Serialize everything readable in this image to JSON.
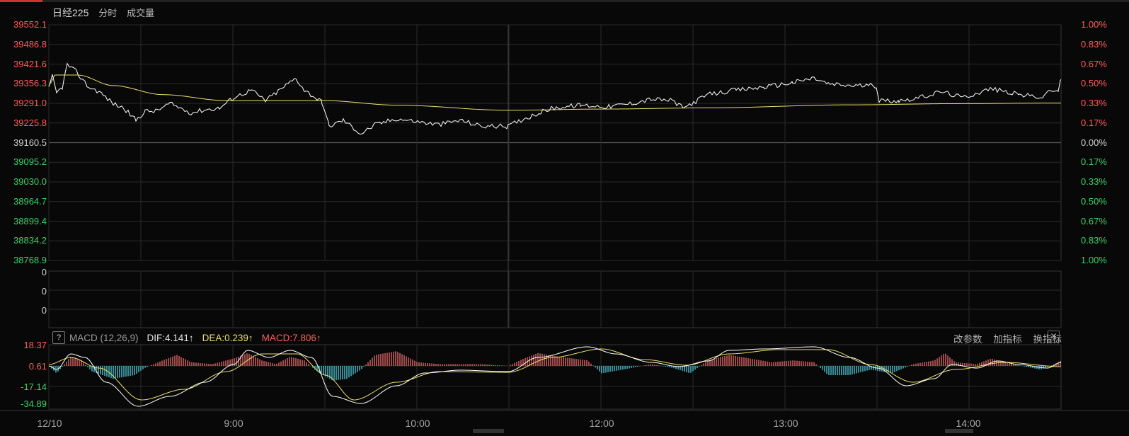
{
  "header": {
    "title": "日经225",
    "mode": "分时",
    "indicator": "成交量"
  },
  "price_axis": {
    "labels": [
      "39552.1",
      "39486.8",
      "39421.6",
      "39356.3",
      "39291.0",
      "39225.8",
      "39160.5",
      "39095.2",
      "39030.0",
      "38964.7",
      "38899.4",
      "38834.2",
      "38768.9"
    ],
    "pct_labels": [
      "1.00%",
      "0.83%",
      "0.67%",
      "0.50%",
      "0.33%",
      "0.17%",
      "0.00%",
      "0.17%",
      "0.33%",
      "0.50%",
      "0.67%",
      "0.83%",
      "1.00%"
    ],
    "up_color": "#ff5b5b",
    "down_color": "#39d06a"
  },
  "volume_axis": {
    "labels": [
      "0",
      "0",
      "0"
    ]
  },
  "macd": {
    "name": "MACD (12,26,9)",
    "help_icon": "?",
    "dif_label": "DIF:4.141↑",
    "dea_label": "DEA:0.239↑",
    "macd_label": "MACD:7.806↑",
    "axis_labels": [
      "18.37",
      "0.61",
      "-17.14",
      "-34.89"
    ],
    "buttons": {
      "change_params": "改参数",
      "add_indicator": "加指标",
      "switch_indicator": "换指标",
      "close": "✕"
    }
  },
  "time_axis": {
    "labels": [
      "12/10",
      "9:00",
      "10:00",
      "12:00",
      "13:00",
      "14:00"
    ]
  },
  "chart_data": {
    "type": "line",
    "title": "",
    "series": [
      {
        "name": "",
        "color": "#ffffff",
        "x": [
          "8:00",
          "8:10",
          "8:30",
          "8:45",
          "9:00",
          "9:20",
          "9:30",
          "9:50",
          "10:00",
          "10:20",
          "10:30",
          "10:45",
          "11:00",
          "11:30",
          "12:00",
          "12:20",
          "12:40",
          "13:00",
          "13:10",
          "13:30",
          "13:40",
          "14:00",
          "14:20",
          "14:30"
        ],
        "values": [
          39340,
          39400,
          39250,
          39290,
          39330,
          39380,
          39215,
          39190,
          39240,
          39210,
          39215,
          39260,
          39300,
          39275,
          39330,
          39350,
          39370,
          39390,
          39370,
          39310,
          39320,
          39340,
          39330,
          39370
        ]
      },
      {
        "name": "",
        "color": "#e8e06a",
        "x": [
          "8:00",
          "8:30",
          "9:00",
          "9:30",
          "10:00",
          "10:30",
          "11:00",
          "12:00",
          "13:00",
          "14:00",
          "14:30"
        ],
        "values": [
          39390,
          39325,
          39300,
          39300,
          39285,
          39275,
          39270,
          39275,
          39285,
          39291,
          39293
        ]
      }
    ],
    "ylim": [
      38768.9,
      39552.1
    ],
    "grid": true
  },
  "colors": {
    "background": "#080808",
    "grid": "#2a2a2a",
    "price_line": "#ffffff",
    "avg_line": "#e8e06a",
    "macd_pos": "#e06666",
    "macd_neg": "#4fc3d2"
  }
}
